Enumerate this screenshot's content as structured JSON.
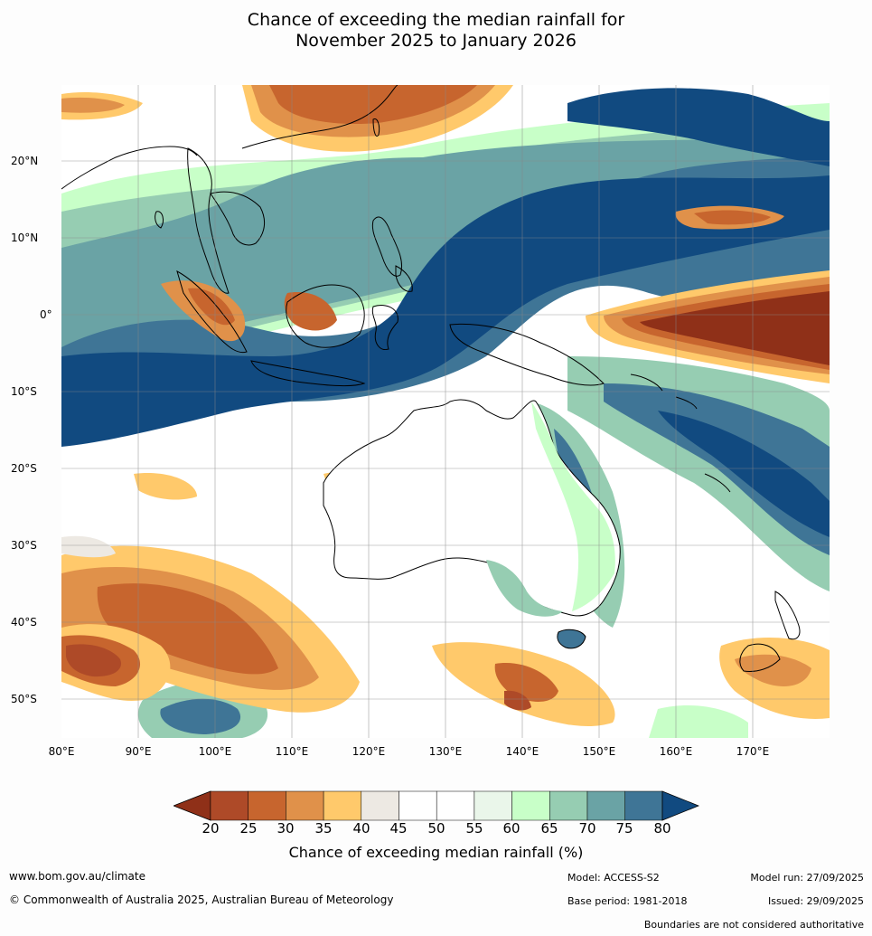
{
  "title": {
    "line1": "Chance of exceeding the median rainfall for",
    "line2": "November 2025 to January 2026"
  },
  "map": {
    "lat_labels": [
      "20°N",
      "10°N",
      "0°",
      "10°S",
      "20°S",
      "30°S",
      "40°S",
      "50°S"
    ],
    "lon_labels": [
      "80°E",
      "90°E",
      "100°E",
      "110°E",
      "120°E",
      "130°E",
      "140°E",
      "150°E",
      "160°E",
      "170°E"
    ],
    "colors": {
      "c15": "#8f3018",
      "c20": "#ae4a28",
      "c25": "#c7652e",
      "c30": "#e0914a",
      "c35": "#ffc96b",
      "c40": "#ede9e3",
      "c45": "#ffffff",
      "c55": "#eaf6ea",
      "c60": "#c8ffc8",
      "c65": "#96cdb2",
      "c70": "#6aa3a5",
      "c75": "#3f7596",
      "c80": "#114a80",
      "coast": "#000000",
      "grid": "#888888"
    }
  },
  "colorbar": {
    "ticks": [
      "20",
      "25",
      "30",
      "35",
      "40",
      "45",
      "50",
      "55",
      "60",
      "65",
      "70",
      "75",
      "80"
    ],
    "label": "Chance of exceeding median rainfall (%)"
  },
  "footer": {
    "website": "www.bom.gov.au/climate",
    "copyright": "© Commonwealth of Australia 2025, Australian Bureau of Meteorology",
    "model": "Model: ACCESS-S2",
    "base_period": "Base period: 1981-2018",
    "model_run": "Model run: 27/09/2025",
    "issued": "Issued: 29/09/2025",
    "disclaimer": "Boundaries are not considered authoritative"
  }
}
